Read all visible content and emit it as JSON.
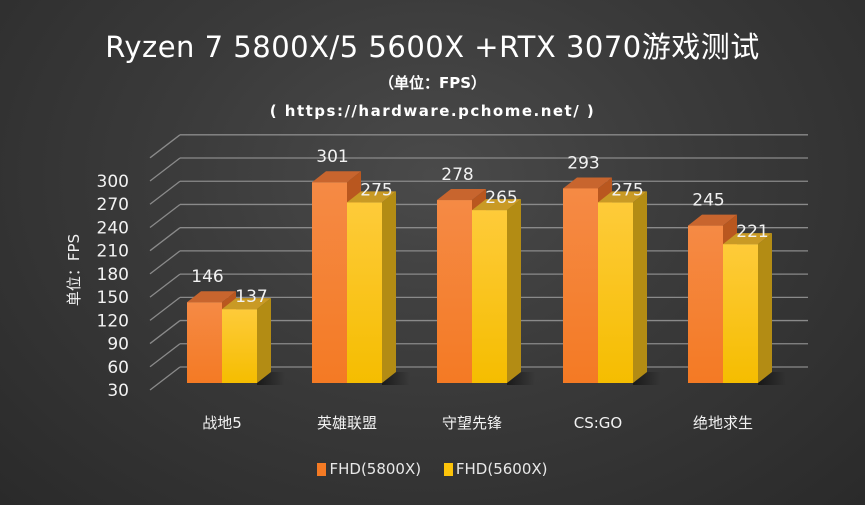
{
  "header": {
    "title": "Ryzen 7 5800X/5 5600X +RTX 3070游戏测试",
    "subtitle": "（单位：FPS）",
    "source": "( https://hardware.pchome.net/ )"
  },
  "colors": {
    "series1": "#f47a24",
    "series1_top": "#c8652e",
    "series1_light": "#f58a45",
    "series2": "#fdc40a",
    "series2_top": "#c99a25",
    "series2_side": "#b38c14",
    "grid": "#8a8a8a",
    "text": "#f2f2f2"
  },
  "chart_data": {
    "type": "bar",
    "title": "Ryzen 7 5800X/5 5600X +RTX 3070游戏测试",
    "subtitle": "（单位：FPS）",
    "xlabel": "",
    "ylabel": "单位：FPS",
    "categories": [
      "战地5",
      "英雄联盟",
      "守望先锋",
      "CS:GO",
      "绝地求生"
    ],
    "series": [
      {
        "name": "FHD(5800X)",
        "values": [
          146,
          301,
          278,
          293,
          245
        ]
      },
      {
        "name": "FHD(5600X)",
        "values": [
          137,
          275,
          265,
          275,
          221
        ]
      }
    ],
    "yticks": [
      30,
      60,
      90,
      120,
      150,
      180,
      210,
      240,
      270,
      300
    ],
    "ylim": [
      30,
      330
    ],
    "grid": true,
    "legend_position": "bottom",
    "style": "3d-column"
  },
  "axis": {
    "ylabel": "单位：FPS"
  },
  "legend": [
    {
      "label": "FHD(5800X)"
    },
    {
      "label": "FHD(5600X)"
    }
  ]
}
